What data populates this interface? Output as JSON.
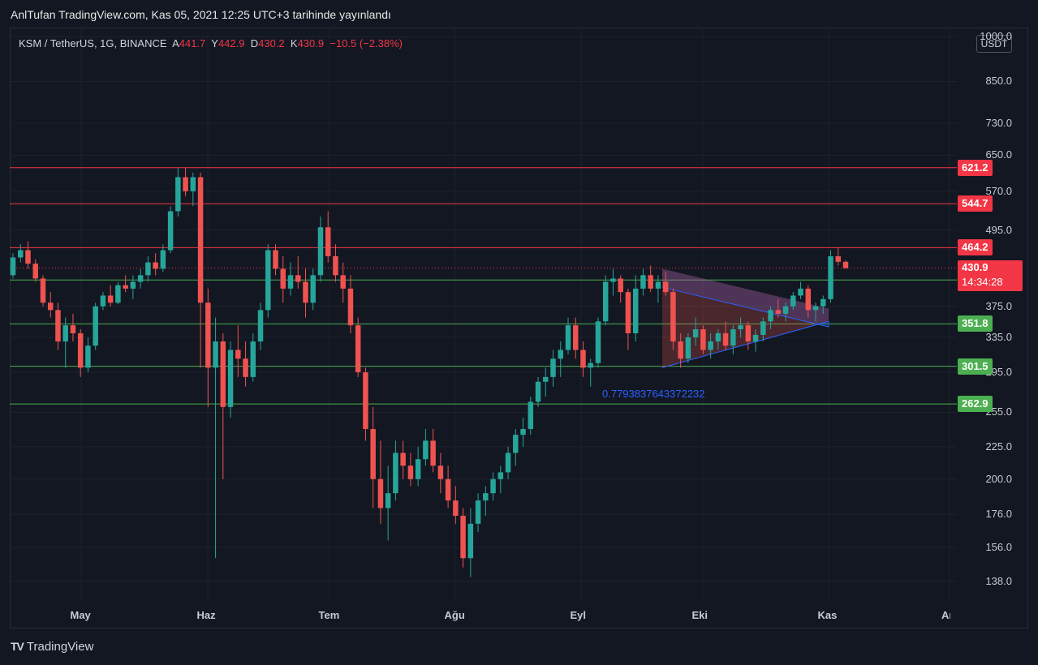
{
  "header": {
    "publish_text": "AnlTufan TradingView.com, Kas 05, 2021 12:25 UTC+3 tarihinde yayınlandı"
  },
  "symbol": {
    "name": "KSM / TetherUS, 1G, BINANCE",
    "open_label": "A",
    "open": "441.7",
    "high_label": "Y",
    "high": "442.9",
    "low_label": "D",
    "low": "430.2",
    "close_label": "K",
    "close": "430.9",
    "change": "−10.5 (−2.38%)"
  },
  "currency": "USDT",
  "colors": {
    "up": "#26a69a",
    "down": "#ef5350",
    "resistance": "#f23645",
    "support": "#4caf50",
    "channel": "#2962ff"
  },
  "chart_data": {
    "type": "candlestick",
    "y_scale": "log",
    "y_ticks": [
      "1000.0",
      "850.0",
      "730.0",
      "650.0",
      "570.0",
      "495.0",
      "375.0",
      "335.0",
      "295.0",
      "255.0",
      "225.0",
      "200.0",
      "176.0",
      "156.0",
      "138.0"
    ],
    "x_ticks": [
      "May",
      "Haz",
      "Tem",
      "Ağu",
      "Eyl",
      "Eki",
      "Kas",
      "Ara"
    ],
    "ylim": [
      128,
      1010
    ],
    "resistance_levels": [
      "621.2",
      "544.7",
      "464.2"
    ],
    "support_levels": [
      "412.7",
      "351.8",
      "301.5",
      "262.9"
    ],
    "last_price": "430.9",
    "countdown": "14:34:28",
    "annotation": "0.7793837643372232",
    "candles": [
      [
        420,
        455,
        415,
        448
      ],
      [
        448,
        470,
        440,
        460
      ],
      [
        460,
        475,
        430,
        438
      ],
      [
        438,
        445,
        410,
        415
      ],
      [
        415,
        420,
        375,
        380
      ],
      [
        380,
        395,
        360,
        370
      ],
      [
        370,
        380,
        320,
        330
      ],
      [
        330,
        360,
        300,
        350
      ],
      [
        350,
        365,
        330,
        340
      ],
      [
        340,
        345,
        290,
        300
      ],
      [
        300,
        335,
        295,
        325
      ],
      [
        325,
        380,
        320,
        375
      ],
      [
        375,
        395,
        370,
        390
      ],
      [
        390,
        405,
        375,
        380
      ],
      [
        380,
        410,
        378,
        405
      ],
      [
        405,
        420,
        395,
        400
      ],
      [
        400,
        420,
        385,
        410
      ],
      [
        410,
        430,
        400,
        420
      ],
      [
        420,
        450,
        410,
        440
      ],
      [
        440,
        455,
        420,
        430
      ],
      [
        430,
        470,
        425,
        460
      ],
      [
        460,
        540,
        455,
        530
      ],
      [
        530,
        620,
        520,
        600
      ],
      [
        600,
        620,
        560,
        570
      ],
      [
        570,
        610,
        540,
        600
      ],
      [
        600,
        610,
        300,
        380
      ],
      [
        380,
        400,
        260,
        300
      ],
      [
        300,
        360,
        150,
        330
      ],
      [
        330,
        340,
        200,
        260
      ],
      [
        260,
        330,
        250,
        320
      ],
      [
        320,
        350,
        290,
        310
      ],
      [
        310,
        330,
        280,
        290
      ],
      [
        290,
        340,
        285,
        330
      ],
      [
        330,
        380,
        320,
        370
      ],
      [
        370,
        470,
        360,
        460
      ],
      [
        460,
        470,
        420,
        430
      ],
      [
        430,
        450,
        380,
        400
      ],
      [
        400,
        440,
        390,
        420
      ],
      [
        420,
        450,
        400,
        410
      ],
      [
        410,
        430,
        360,
        380
      ],
      [
        380,
        430,
        370,
        420
      ],
      [
        420,
        520,
        410,
        500
      ],
      [
        500,
        530,
        440,
        450
      ],
      [
        450,
        470,
        410,
        420
      ],
      [
        420,
        440,
        380,
        400
      ],
      [
        400,
        420,
        340,
        350
      ],
      [
        350,
        360,
        290,
        295
      ],
      [
        295,
        300,
        230,
        240
      ],
      [
        240,
        260,
        180,
        200
      ],
      [
        200,
        230,
        170,
        180
      ],
      [
        180,
        210,
        160,
        190
      ],
      [
        190,
        230,
        185,
        220
      ],
      [
        220,
        230,
        200,
        210
      ],
      [
        210,
        220,
        195,
        200
      ],
      [
        200,
        225,
        195,
        215
      ],
      [
        215,
        240,
        210,
        230
      ],
      [
        230,
        240,
        205,
        210
      ],
      [
        210,
        220,
        190,
        200
      ],
      [
        200,
        210,
        180,
        185
      ],
      [
        185,
        195,
        170,
        175
      ],
      [
        175,
        180,
        145,
        150
      ],
      [
        150,
        180,
        140,
        170
      ],
      [
        170,
        190,
        165,
        185
      ],
      [
        185,
        195,
        175,
        190
      ],
      [
        190,
        205,
        185,
        200
      ],
      [
        200,
        210,
        190,
        205
      ],
      [
        205,
        225,
        200,
        220
      ],
      [
        220,
        240,
        210,
        235
      ],
      [
        235,
        250,
        225,
        240
      ],
      [
        240,
        270,
        235,
        265
      ],
      [
        265,
        290,
        260,
        285
      ],
      [
        285,
        300,
        270,
        290
      ],
      [
        290,
        320,
        280,
        310
      ],
      [
        310,
        330,
        290,
        320
      ],
      [
        320,
        360,
        315,
        350
      ],
      [
        350,
        360,
        310,
        320
      ],
      [
        320,
        330,
        290,
        300
      ],
      [
        300,
        310,
        280,
        305
      ],
      [
        305,
        360,
        300,
        355
      ],
      [
        355,
        420,
        350,
        410
      ],
      [
        410,
        430,
        390,
        415
      ],
      [
        415,
        420,
        380,
        395
      ],
      [
        395,
        400,
        320,
        340
      ],
      [
        340,
        420,
        330,
        400
      ],
      [
        400,
        430,
        390,
        420
      ],
      [
        420,
        435,
        395,
        400
      ],
      [
        400,
        420,
        380,
        410
      ],
      [
        410,
        425,
        390,
        395
      ],
      [
        395,
        400,
        320,
        330
      ],
      [
        330,
        340,
        300,
        310
      ],
      [
        310,
        340,
        305,
        335
      ],
      [
        335,
        360,
        325,
        345
      ],
      [
        345,
        350,
        315,
        320
      ],
      [
        320,
        340,
        310,
        330
      ],
      [
        330,
        345,
        320,
        340
      ],
      [
        340,
        355,
        320,
        325
      ],
      [
        325,
        350,
        315,
        345
      ],
      [
        345,
        360,
        335,
        350
      ],
      [
        350,
        355,
        320,
        330
      ],
      [
        330,
        345,
        318,
        338
      ],
      [
        338,
        360,
        330,
        355
      ],
      [
        355,
        375,
        345,
        370
      ],
      [
        370,
        385,
        360,
        365
      ],
      [
        365,
        380,
        355,
        375
      ],
      [
        375,
        395,
        370,
        390
      ],
      [
        390,
        410,
        385,
        400
      ],
      [
        400,
        405,
        360,
        370
      ],
      [
        370,
        380,
        355,
        375
      ],
      [
        375,
        390,
        365,
        385
      ],
      [
        385,
        460,
        380,
        450
      ],
      [
        450,
        465,
        435,
        441
      ],
      [
        441,
        443,
        430,
        431
      ]
    ]
  }
}
